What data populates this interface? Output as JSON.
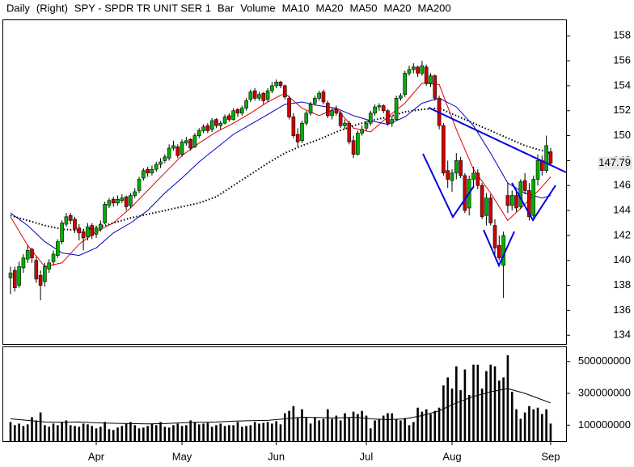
{
  "chart_data": {
    "type": "candlestick",
    "title_parts": [
      "Daily",
      "(Right)",
      "SPY - SPDR TR UNIT SER 1",
      "Bar",
      "Volume"
    ],
    "up_color": "#00b000",
    "down_color": "#d00000",
    "open": [
      138.6,
      139.2,
      138.0,
      139.4,
      140.1,
      140.9,
      140.0,
      138.8,
      138.3,
      139.3,
      139.9,
      140.4,
      141.5,
      142.9,
      143.6,
      143.3,
      142.6,
      142.3,
      141.9,
      142.8,
      142.1,
      142.5,
      143.0,
      144.4,
      144.9,
      144.6,
      144.8,
      145.1,
      144.4,
      145.2,
      145.6,
      146.6,
      147.3,
      147.0,
      147.3,
      147.7,
      148.0,
      148.2,
      149.0,
      149.1,
      148.5,
      149.4,
      149.7,
      149.1,
      150.0,
      150.4,
      150.8,
      150.5,
      151.3,
      150.8,
      151.0,
      151.6,
      151.3,
      152.1,
      151.8,
      152.2,
      152.9,
      153.6,
      153.0,
      153.4,
      152.9,
      153.6,
      154.0,
      154.3,
      154.0,
      153.0,
      151.5,
      150.1,
      149.6,
      151.0,
      151.8,
      152.6,
      153.0,
      153.5,
      152.6,
      151.6,
      152.1,
      151.8,
      150.8,
      151.0,
      149.6,
      148.5,
      150.2,
      150.6,
      151.0,
      151.8,
      152.3,
      152.4,
      152.0,
      151.0,
      151.3,
      153.0,
      153.3,
      155.0,
      155.3,
      155.5,
      155.0,
      155.5,
      154.2,
      154.8,
      153.0,
      150.8,
      147.2,
      146.4,
      147.0,
      148.0,
      146.8,
      144.2,
      146.5,
      147.0,
      146.0,
      143.6,
      145.0,
      142.8,
      141.2,
      139.6,
      145.2,
      144.4,
      145.2,
      144.3,
      146.4,
      145.6,
      143.6,
      146.5,
      148.0,
      147.2,
      148.7
    ],
    "high": [
      139.5,
      139.5,
      139.9,
      140.5,
      141.2,
      141.0,
      140.3,
      139.2,
      139.8,
      140.1,
      140.8,
      141.7,
      143.2,
      143.8,
      143.8,
      143.5,
      142.9,
      142.5,
      143.0,
      143.0,
      142.8,
      143.2,
      144.7,
      145.0,
      145.1,
      145.2,
      145.3,
      145.2,
      145.4,
      145.8,
      146.7,
      147.4,
      147.5,
      147.6,
      147.9,
      148.2,
      148.5,
      149.3,
      149.6,
      149.3,
      149.7,
      149.9,
      149.8,
      150.2,
      150.6,
      150.9,
      151.0,
      151.4,
      151.4,
      151.2,
      151.7,
      151.8,
      152.2,
      152.2,
      152.4,
      153.0,
      153.7,
      153.8,
      153.5,
      153.5,
      153.8,
      154.3,
      154.5,
      154.4,
      154.1,
      153.2,
      151.8,
      150.6,
      151.2,
      152.0,
      152.7,
      153.2,
      153.6,
      153.7,
      152.8,
      152.2,
      152.4,
      152.0,
      151.3,
      151.2,
      150.0,
      150.4,
      150.8,
      151.2,
      152.0,
      152.5,
      152.6,
      152.5,
      152.1,
      151.6,
      153.2,
      153.4,
      155.2,
      155.6,
      155.8,
      155.6,
      156.0,
      155.7,
      155.0,
      154.9,
      153.2,
      151.0,
      148.0,
      147.3,
      148.6,
      148.3,
      147.0,
      146.8,
      147.5,
      147.3,
      146.2,
      145.4,
      145.3,
      143.3,
      142.0,
      142.3,
      146.2,
      145.6,
      145.5,
      146.5,
      147.0,
      146.2,
      146.8,
      148.5,
      148.4,
      150.0,
      149.0
    ],
    "low": [
      137.3,
      137.5,
      137.8,
      139.0,
      139.8,
      139.8,
      138.2,
      136.8,
      137.9,
      139.0,
      139.6,
      140.2,
      141.3,
      142.7,
      142.9,
      142.2,
      141.6,
      140.8,
      141.6,
      141.7,
      141.8,
      142.3,
      142.9,
      144.2,
      144.3,
      144.4,
      144.6,
      144.0,
      144.2,
      145.0,
      145.4,
      146.4,
      146.7,
      146.8,
      147.1,
      147.4,
      147.8,
      148.0,
      148.8,
      148.2,
      148.3,
      149.2,
      148.8,
      149.0,
      149.8,
      150.2,
      150.2,
      150.3,
      150.6,
      150.5,
      150.9,
      151.1,
      151.2,
      151.5,
      151.6,
      152.0,
      152.7,
      152.8,
      152.8,
      152.5,
      152.7,
      153.4,
      153.8,
      153.8,
      152.9,
      151.3,
      149.8,
      149.1,
      149.4,
      150.8,
      151.6,
      152.4,
      152.8,
      152.5,
      151.4,
      151.3,
      151.6,
      150.6,
      150.5,
      149.3,
      148.2,
      148.4,
      150.0,
      150.4,
      150.8,
      151.6,
      152.0,
      151.8,
      150.8,
      150.7,
      151.2,
      152.8,
      153.1,
      154.8,
      155.0,
      154.7,
      154.8,
      154.0,
      153.9,
      152.8,
      150.5,
      146.8,
      145.8,
      145.5,
      146.5,
      146.6,
      143.8,
      143.6,
      145.9,
      145.7,
      143.3,
      142.8,
      142.8,
      140.5,
      140.0,
      137.0,
      143.8,
      144.0,
      143.9,
      144.1,
      145.3,
      143.2,
      143.4,
      146.0,
      146.8,
      147.0,
      147.6
    ],
    "close": [
      139.0,
      137.8,
      139.5,
      140.2,
      140.8,
      140.2,
      138.5,
      138.0,
      139.5,
      139.8,
      140.5,
      141.5,
      143.0,
      143.5,
      143.2,
      142.5,
      142.2,
      141.8,
      142.7,
      142.0,
      142.6,
      142.9,
      144.5,
      144.8,
      144.6,
      144.9,
      145.0,
      144.3,
      145.2,
      145.5,
      146.5,
      147.2,
      147.0,
      147.3,
      147.7,
      147.9,
      148.3,
      149.0,
      149.2,
      148.4,
      149.5,
      149.6,
      149.0,
      150.0,
      150.4,
      150.7,
      150.4,
      151.2,
      150.8,
      151.0,
      151.5,
      151.3,
      152.0,
      151.8,
      152.2,
      152.8,
      153.5,
      153.0,
      153.3,
      152.8,
      153.6,
      154.0,
      154.3,
      154.0,
      153.1,
      151.5,
      150.0,
      149.5,
      151.0,
      151.8,
      152.5,
      153.0,
      153.4,
      152.7,
      151.6,
      152.0,
      151.8,
      150.8,
      151.0,
      149.5,
      148.5,
      150.2,
      150.5,
      151.0,
      151.8,
      152.3,
      152.4,
      152.0,
      151.0,
      151.3,
      153.0,
      153.2,
      155.0,
      155.3,
      155.5,
      155.0,
      155.6,
      154.2,
      154.8,
      153.0,
      150.8,
      147.0,
      146.5,
      147.0,
      148.0,
      146.8,
      144.0,
      146.5,
      147.0,
      146.0,
      143.5,
      145.0,
      143.0,
      141.0,
      140.2,
      142.0,
      144.4,
      145.2,
      144.2,
      146.3,
      145.6,
      143.5,
      146.5,
      148.0,
      147.2,
      149.2,
      147.79
    ],
    "xlim": [
      -1.7,
      129.6
    ],
    "xticks": [
      {
        "value": 20,
        "label": "Apr"
      },
      {
        "value": 40,
        "label": "May"
      },
      {
        "value": 62,
        "label": "Jun"
      },
      {
        "value": 83,
        "label": "Jul"
      },
      {
        "value": 103,
        "label": "Aug"
      },
      {
        "value": 126,
        "label": "Sep"
      }
    ],
    "ylim": [
      133.3,
      159.25
    ],
    "yticks": [
      134,
      136,
      138,
      140,
      142,
      144,
      146,
      148,
      150,
      152,
      154,
      156,
      158
    ],
    "last_label": {
      "value": 147.79,
      "label": "147.79"
    },
    "lines": [
      {
        "name": "MA10",
        "color": "#e00000",
        "dotted": false,
        "x": [
          0,
          4,
          8,
          12,
          16,
          20,
          24,
          28,
          32,
          36,
          40,
          44,
          48,
          52,
          56,
          60,
          64,
          68,
          72,
          76,
          80,
          84,
          88,
          92,
          96,
          100,
          104,
          108,
          112,
          116,
          120,
          124,
          126
        ],
        "values": [
          143.5,
          141.2,
          139.5,
          139.8,
          141.3,
          142.3,
          143.0,
          144.2,
          145.6,
          147.0,
          148.4,
          149.4,
          150.3,
          151.0,
          151.8,
          152.7,
          153.4,
          152.2,
          151.6,
          152.2,
          150.6,
          150.3,
          151.5,
          152.6,
          154.2,
          154.1,
          150.5,
          147.3,
          145.4,
          143.2,
          144.5,
          145.9,
          146.7
        ]
      },
      {
        "name": "MA20",
        "color": "#0000c0",
        "dotted": false,
        "x": [
          0,
          4,
          8,
          12,
          16,
          20,
          24,
          28,
          32,
          36,
          40,
          44,
          48,
          52,
          56,
          60,
          64,
          68,
          72,
          76,
          80,
          84,
          88,
          92,
          96,
          100,
          104,
          108,
          112,
          116,
          120,
          124,
          126
        ],
        "values": [
          143.8,
          142.8,
          141.5,
          140.6,
          140.4,
          141.0,
          142.2,
          143.0,
          144.0,
          145.4,
          146.6,
          147.9,
          149.0,
          150.1,
          150.9,
          151.7,
          152.5,
          152.7,
          152.4,
          152.2,
          151.6,
          151.2,
          150.9,
          151.5,
          152.6,
          153.0,
          152.3,
          150.8,
          148.6,
          146.2,
          145.4,
          145.0,
          145.2
        ]
      },
      {
        "name": "MA50",
        "color": "#000000",
        "dotted": true,
        "x": [
          0,
          4,
          8,
          12,
          16,
          20,
          24,
          28,
          32,
          36,
          40,
          44,
          48,
          52,
          56,
          60,
          64,
          68,
          72,
          76,
          80,
          84,
          88,
          92,
          96,
          100,
          104,
          108,
          112,
          116,
          120,
          124,
          126
        ],
        "values": [
          143.6,
          143.2,
          142.8,
          142.5,
          142.4,
          142.6,
          143.0,
          143.4,
          143.7,
          144.0,
          144.3,
          144.6,
          145.1,
          146.0,
          146.9,
          147.8,
          148.6,
          149.2,
          149.7,
          150.3,
          150.8,
          151.2,
          151.5,
          151.9,
          152.1,
          152.2,
          151.6,
          151.0,
          150.4,
          149.8,
          149.2,
          148.8,
          148.6
        ]
      }
    ],
    "volume": {
      "color": "#000000",
      "ylim": [
        0,
        590000000
      ],
      "yticks": [
        100000000,
        300000000,
        500000000
      ],
      "values": [
        120000000,
        100000000,
        110000000,
        95000000,
        105000000,
        150000000,
        130000000,
        180000000,
        100000000,
        90000000,
        110000000,
        100000000,
        120000000,
        130000000,
        100000000,
        95000000,
        90000000,
        110000000,
        105000000,
        95000000,
        80000000,
        90000000,
        120000000,
        75000000,
        70000000,
        85000000,
        95000000,
        110000000,
        120000000,
        100000000,
        80000000,
        85000000,
        95000000,
        110000000,
        100000000,
        120000000,
        90000000,
        85000000,
        100000000,
        110000000,
        95000000,
        100000000,
        130000000,
        120000000,
        105000000,
        110000000,
        115000000,
        90000000,
        100000000,
        110000000,
        95000000,
        100000000,
        100000000,
        120000000,
        90000000,
        95000000,
        100000000,
        120000000,
        110000000,
        115000000,
        120000000,
        110000000,
        125000000,
        105000000,
        175000000,
        190000000,
        220000000,
        150000000,
        200000000,
        150000000,
        110000000,
        150000000,
        130000000,
        140000000,
        200000000,
        140000000,
        160000000,
        130000000,
        175000000,
        145000000,
        185000000,
        170000000,
        190000000,
        160000000,
        80000000,
        130000000,
        140000000,
        160000000,
        175000000,
        175000000,
        140000000,
        130000000,
        145000000,
        100000000,
        120000000,
        210000000,
        185000000,
        200000000,
        170000000,
        190000000,
        210000000,
        350000000,
        400000000,
        330000000,
        470000000,
        320000000,
        450000000,
        290000000,
        480000000,
        480000000,
        330000000,
        440000000,
        480000000,
        470000000,
        380000000,
        400000000,
        540000000,
        310000000,
        200000000,
        140000000,
        180000000,
        220000000,
        200000000,
        210000000,
        170000000,
        200000000,
        110000000
      ],
      "ma": {
        "name": "MA20",
        "color": "#000000",
        "x": [
          0,
          4,
          8,
          12,
          16,
          20,
          24,
          28,
          32,
          36,
          40,
          44,
          48,
          52,
          56,
          60,
          64,
          68,
          72,
          76,
          80,
          84,
          88,
          92,
          96,
          100,
          104,
          108,
          112,
          116,
          120,
          124,
          126
        ],
        "values": [
          140000000,
          130000000,
          120000000,
          118000000,
          120000000,
          115000000,
          112000000,
          110000000,
          108000000,
          110000000,
          115000000,
          118000000,
          120000000,
          125000000,
          128000000,
          130000000,
          140000000,
          150000000,
          148000000,
          145000000,
          150000000,
          140000000,
          135000000,
          140000000,
          160000000,
          190000000,
          240000000,
          280000000,
          310000000,
          330000000,
          300000000,
          260000000,
          240000000
        ]
      }
    },
    "extra_legend": [
      {
        "name": "MA200",
        "color": "#000000"
      }
    ]
  }
}
